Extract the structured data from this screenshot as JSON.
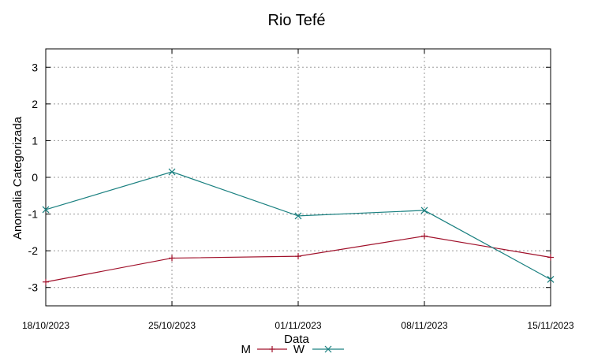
{
  "chart_data": {
    "type": "line",
    "title": "Rio Tefé",
    "xlabel": "Data",
    "ylabel": "Anomalia Categorizada",
    "x_ticks": [
      "18/10/2023",
      "25/10/2023",
      "01/11/2023",
      "08/11/2023",
      "15/11/2023"
    ],
    "x": [
      "18/10/2023",
      "25/10/2023",
      "01/11/2023",
      "08/11/2023",
      "15/11/2023"
    ],
    "y_ticks": [
      "3",
      "2",
      "1",
      "0",
      "-1",
      "-2",
      "-3"
    ],
    "ylim": [
      -3.5,
      3.5
    ],
    "grid": true,
    "legend_position": "bottom",
    "series": [
      {
        "name": "M",
        "color": "#a0102a",
        "marker": "plus",
        "values": [
          -2.85,
          -2.2,
          -2.15,
          -1.6,
          -2.18
        ]
      },
      {
        "name": "W",
        "color": "#1a8080",
        "marker": "cross",
        "values": [
          -0.88,
          0.15,
          -1.05,
          -0.9,
          -2.78
        ]
      }
    ]
  }
}
